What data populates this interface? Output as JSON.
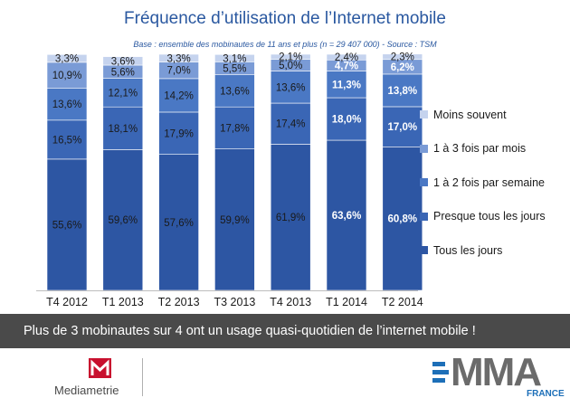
{
  "header": {
    "title": "Fréquence d’utilisation de l’Internet mobile",
    "subtitle": "Base : ensemble des mobinautes de 11 ans et plus (n = 29 407 000) - Source : TSM"
  },
  "chart_data": {
    "type": "bar",
    "stacked": true,
    "title": "Fréquence d’utilisation de l’Internet mobile",
    "categories": [
      "T4 2012",
      "T1 2013",
      "T2 2013",
      "T3 2013",
      "T4 2013",
      "T1 2014",
      "T2 2014"
    ],
    "value_labels": [
      [
        "55,6%",
        "16,5%",
        "13,6%",
        "10,9%",
        "3,3%"
      ],
      [
        "59,6%",
        "18,1%",
        "12,1%",
        "5,6%",
        "3,6%"
      ],
      [
        "57,6%",
        "17,9%",
        "14,2%",
        "7,0%",
        "3,3%"
      ],
      [
        "59,9%",
        "17,8%",
        "13,6%",
        "5,5%",
        "3,1%"
      ],
      [
        "61,9%",
        "17,4%",
        "13,6%",
        "5,0%",
        "2,1%"
      ],
      [
        "63,6%",
        "18,0%",
        "11,3%",
        "4,7%",
        "2,4%"
      ],
      [
        "60,8%",
        "17,0%",
        "13,8%",
        "6,2%",
        "2,3%"
      ]
    ],
    "series": [
      {
        "name": "Tous les jours",
        "color": "#2d56a3",
        "values": [
          55.6,
          59.6,
          57.6,
          59.9,
          61.9,
          63.6,
          60.8
        ]
      },
      {
        "name": "Presque tous les jours",
        "color": "#3a66b5",
        "values": [
          16.5,
          18.1,
          17.9,
          17.8,
          17.4,
          18.0,
          17.0
        ]
      },
      {
        "name": "1 à 2 fois par semaine",
        "color": "#4a78c4",
        "values": [
          13.6,
          12.1,
          14.2,
          13.6,
          13.6,
          11.3,
          13.8
        ]
      },
      {
        "name": "1 à 3 fois par mois",
        "color": "#7a9bd6",
        "values": [
          10.9,
          5.6,
          7.0,
          5.5,
          5.0,
          4.7,
          6.2
        ]
      },
      {
        "name": "Moins souvent",
        "color": "#c5d3ee",
        "values": [
          3.3,
          3.6,
          3.3,
          3.1,
          2.1,
          2.4,
          2.3
        ]
      }
    ],
    "emphasized_categories": [
      "T1 2014",
      "T2 2014"
    ],
    "legend_position": "right",
    "legend_order": [
      "Moins souvent",
      "1 à 3 fois par mois",
      "1 à 2 fois par semaine",
      "Presque tous les jours",
      "Tous les jours"
    ],
    "ylim": [
      0,
      100
    ],
    "grid": false
  },
  "banner": {
    "text": "Plus de 3 mobinautes sur 4 ont un usage quasi-quotidien de l’internet mobile !"
  },
  "logos": {
    "left_name": "Mediametrie",
    "right_letters": "MMA",
    "right_sub": "FRANCE"
  },
  "colors": {
    "title": "#2a58a0",
    "banner_bg": "#4a4a4a",
    "mediametrie_red": "#c8102e",
    "mma_grey": "#6b6b6b",
    "mma_blue": "#1d6fb8"
  }
}
